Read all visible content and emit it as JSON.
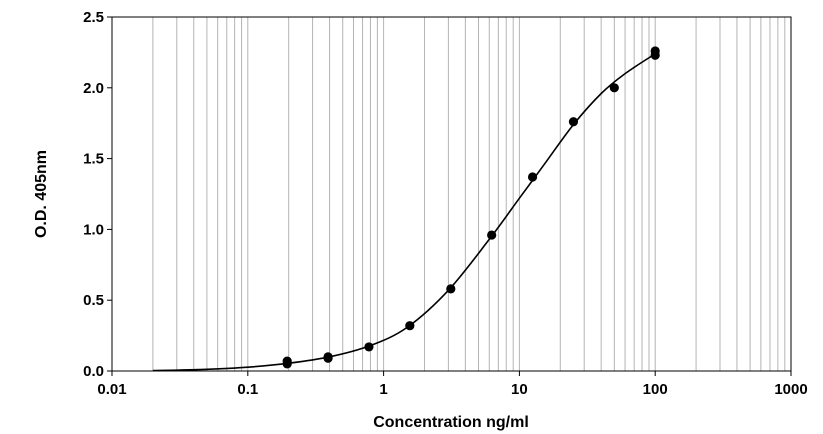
{
  "chart_data": {
    "type": "scatter",
    "title": "",
    "xlabel": "Concentration ng/ml",
    "ylabel": "O.D. 405nm",
    "xscale": "log",
    "xlim": [
      0.01,
      1000
    ],
    "ylim": [
      0,
      2.5
    ],
    "x_ticks": [
      "0.01",
      "0.1",
      "1",
      "10",
      "100",
      "1000"
    ],
    "y_ticks": [
      "0.0",
      "0.5",
      "1.0",
      "1.5",
      "2.0",
      "2.5"
    ],
    "grid": true,
    "legend": "none",
    "colors": {
      "points": "#000000",
      "curve": "#000000",
      "grid": "#b4b4b4",
      "axes": "#000000"
    },
    "series": [
      {
        "type": "scatter",
        "x": [
          0.195,
          0.195,
          0.39,
          0.39,
          0.78,
          1.56,
          3.125,
          6.25,
          12.5,
          25,
          50,
          100,
          100
        ],
        "y": [
          0.05,
          0.07,
          0.09,
          0.1,
          0.17,
          0.32,
          0.58,
          0.96,
          1.37,
          1.76,
          2.0,
          2.23,
          2.26
        ]
      },
      {
        "type": "line",
        "x": [
          0.02,
          0.05,
          0.1,
          0.2,
          0.4,
          0.8,
          1.5,
          3,
          6,
          10,
          15,
          25,
          40,
          60,
          100
        ],
        "y": [
          0.003,
          0.012,
          0.027,
          0.055,
          0.1,
          0.18,
          0.31,
          0.57,
          0.93,
          1.22,
          1.45,
          1.74,
          1.96,
          2.1,
          2.24
        ]
      }
    ]
  }
}
